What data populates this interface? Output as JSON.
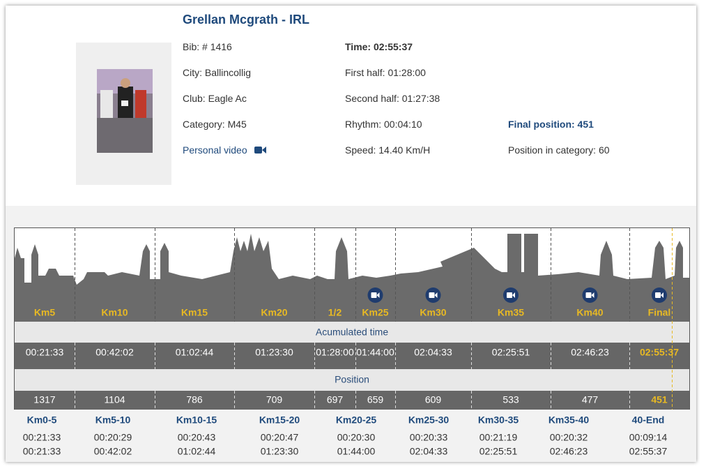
{
  "runner": {
    "name": "Grellan Mcgrath - IRL",
    "bib": "Bib: # 1416",
    "city": "City: Ballincollig",
    "club": "Club: Eagle Ac",
    "category": "Category: M45",
    "video_link": "Personal video",
    "time": "Time: 02:55:37",
    "first_half": "First half: 01:28:00",
    "second_half": "Second half: 01:27:38",
    "rhythm": "Rhythm: 00:04:10",
    "speed": "Speed: 14.40 Km/H",
    "final_position": "Final position: 451",
    "category_position": "Position in category: 60"
  },
  "checkpoints": {
    "labels": [
      "Km5",
      "Km10",
      "Km15",
      "Km20",
      "1/2",
      "Km25",
      "Km30",
      "Km35",
      "Km40",
      "Final"
    ],
    "has_video": [
      false,
      false,
      false,
      false,
      false,
      true,
      true,
      true,
      true,
      true
    ],
    "accumulated_title": "Acumulated time",
    "times": [
      "00:21:33",
      "00:42:02",
      "01:02:44",
      "01:23:30",
      "01:28:00",
      "01:44:00",
      "02:04:33",
      "02:25:51",
      "02:46:23",
      "02:55:37"
    ],
    "position_title": "Position",
    "positions": [
      1317,
      1104,
      786,
      709,
      697,
      659,
      609,
      533,
      477,
      451
    ]
  },
  "splits": [
    {
      "label": "Km0-5",
      "split": "00:21:33",
      "accumulated": "00:21:33"
    },
    {
      "label": "Km5-10",
      "split": "00:20:29",
      "accumulated": "00:42:02"
    },
    {
      "label": "Km10-15",
      "split": "00:20:43",
      "accumulated": "01:02:44"
    },
    {
      "label": "Km15-20",
      "split": "00:20:47",
      "accumulated": "01:23:30"
    },
    {
      "label": "Km20-25",
      "split": "00:20:30",
      "accumulated": "01:44:00"
    },
    {
      "label": "Km25-30",
      "split": "00:20:33",
      "accumulated": "02:04:33"
    },
    {
      "label": "Km30-35",
      "split": "00:21:19",
      "accumulated": "02:25:51"
    },
    {
      "label": "Km35-40",
      "split": "00:20:32",
      "accumulated": "02:46:23"
    },
    {
      "label": "40-End",
      "split": "00:09:14",
      "accumulated": "02:55:37"
    }
  ]
}
